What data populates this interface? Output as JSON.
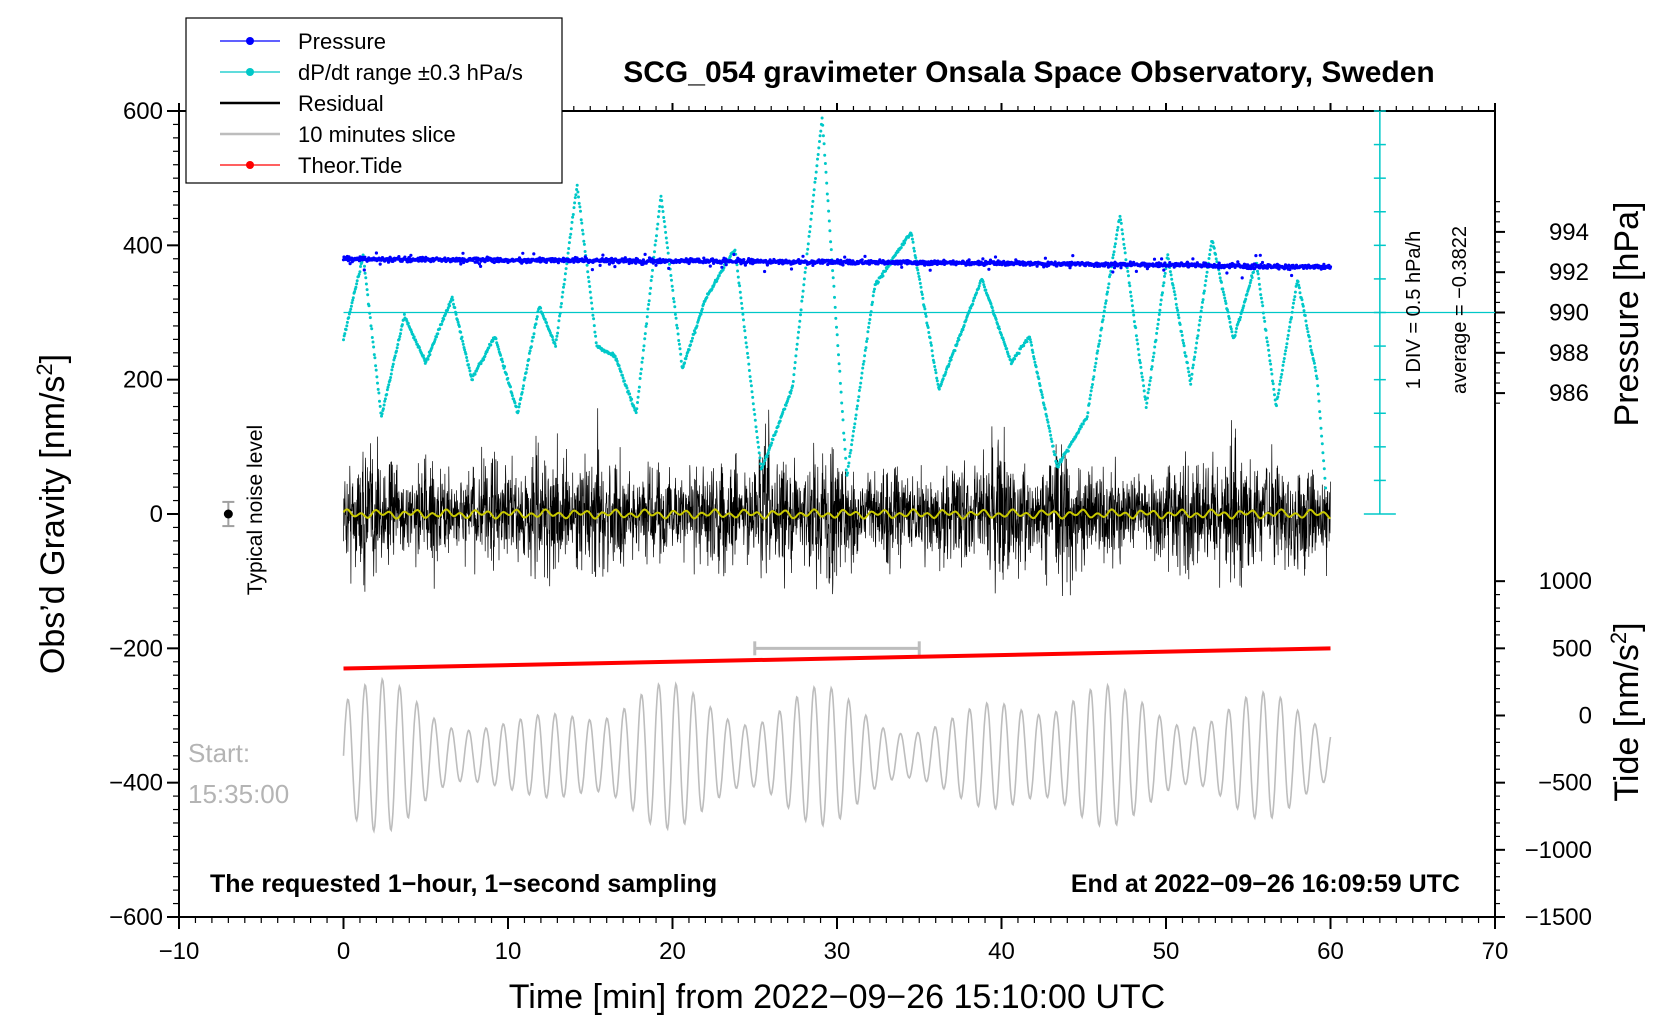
{
  "chart_data": {
    "type": "line",
    "title": "SCG_054 gravimeter Onsala Space Observatory, Sweden",
    "xlabel": "Time [min] from 2022−09−26 15:10:00 UTC",
    "ylabel_left_main": "Obs’d Gravity [nm/s",
    "ylabel_left_sup": "2",
    "ylabel_left_end": "]",
    "ylabel_right_pressure": "Pressure [hPa]",
    "ylabel_right_tide_main": "Tide [nm/s",
    "ylabel_right_tide_sup": "2",
    "ylabel_right_tide_end": "]",
    "xlim": [
      -10,
      70
    ],
    "ylim": [
      -600,
      600
    ],
    "x_ticks": [
      -10,
      0,
      10,
      20,
      30,
      40,
      50,
      60,
      70
    ],
    "x_tick_labels": [
      "−10",
      "0",
      "10",
      "20",
      "30",
      "40",
      "50",
      "60",
      "70"
    ],
    "y_ticks": [
      600,
      400,
      200,
      0,
      -200,
      -400,
      -600
    ],
    "y_tick_labels": [
      "600",
      "400",
      "200",
      "0",
      "−200",
      "−400",
      "−600"
    ],
    "pressure_axis": {
      "ticks": [
        994,
        992,
        990,
        988,
        986
      ],
      "tick_labels": [
        "994",
        "992",
        "990",
        "988",
        "986"
      ],
      "reference_value": 990,
      "reference_gravity": 300,
      "gravity_per_hpa": 30
    },
    "tide_axis": {
      "ticks": [
        1000,
        500,
        0,
        -500,
        -1000,
        -1500
      ],
      "tick_labels": [
        "1000",
        "500",
        "0",
        "−500",
        "−1000",
        "−1500"
      ],
      "reference_tide": 0,
      "reference_gravity": -300,
      "gravity_per_unit": 0.2
    },
    "dpdt_scale": {
      "label_div": "1 DIV = 0.5 hPa/h",
      "label_avg": "average = −0.3822",
      "baseline_gravity": 300,
      "divisions": 12
    },
    "legend": {
      "position": "top-left",
      "entries": [
        {
          "label": "Pressure",
          "color": "#0000ff",
          "marker": "dot"
        },
        {
          "label": "dP/dt range ±0.3 hPa/s",
          "color": "#00c8c8",
          "marker": "dot"
        },
        {
          "label": "Residual",
          "color": "#000000",
          "marker": "line"
        },
        {
          "label": "10 minutes slice",
          "color": "#bdbdbd",
          "marker": "line"
        },
        {
          "label": "Theor.Tide",
          "color": "#ff0000",
          "marker": "dot"
        }
      ]
    },
    "noise_level": {
      "label": "Typical noise level",
      "x": -7,
      "y": 0,
      "err": 18
    },
    "slice_bracket": {
      "x_start": 25,
      "x_end": 35,
      "y": -200
    },
    "start_label_line1": "Start:",
    "start_label_line2": "15:35:00",
    "footer_left": "The requested 1−hour, 1−second sampling",
    "footer_right": "End at 2022−09−26 16:09:59 UTC",
    "series": [
      {
        "name": "Pressure",
        "color": "#0000ff",
        "x": [
          0,
          10,
          20,
          30,
          40,
          50,
          60
        ],
        "values": [
          992.65,
          992.6,
          992.55,
          992.5,
          992.45,
          992.35,
          992.25
        ]
      },
      {
        "name": "dP/dt",
        "color": "#00c8c8",
        "x": [
          0,
          1.2,
          2.3,
          3.7,
          5,
          6.6,
          7.8,
          9.2,
          10.6,
          11.9,
          12.9,
          14.2,
          15.4,
          16.5,
          17.8,
          19.3,
          20.6,
          22,
          23.8,
          25.4,
          27.3,
          29.1,
          30.6,
          32.3,
          34.5,
          36.2,
          38.8,
          40.6,
          41.7,
          43.4,
          45.2,
          47.2,
          48.8,
          50.1,
          51.5,
          52.8,
          54.1,
          55.5,
          56.7,
          58,
          59.2,
          59.7
        ],
        "values": [
          260,
          385,
          145,
          295,
          225,
          322,
          200,
          265,
          150,
          310,
          250,
          490,
          250,
          235,
          150,
          475,
          215,
          320,
          395,
          65,
          190,
          590,
          55,
          340,
          420,
          185,
          350,
          225,
          265,
          70,
          145,
          445,
          160,
          385,
          195,
          410,
          260,
          375,
          160,
          350,
          200,
          40
        ]
      },
      {
        "name": "Residual",
        "color": "#000000",
        "x": [
          0,
          60
        ],
        "values": [
          0,
          0
        ],
        "envelope": 90
      },
      {
        "name": "Smoothed residual",
        "color": "#c8c800",
        "x": [
          0,
          60
        ],
        "values": [
          0,
          0
        ]
      },
      {
        "name": "Theor.Tide",
        "color": "#ff0000",
        "x": [
          0,
          60
        ],
        "values": [
          -230,
          -200
        ]
      },
      {
        "name": "10 minutes slice",
        "color": "#bdbdbd",
        "x": [
          0,
          60
        ],
        "values": [
          -360,
          -360
        ],
        "amplitude": 130
      }
    ]
  }
}
